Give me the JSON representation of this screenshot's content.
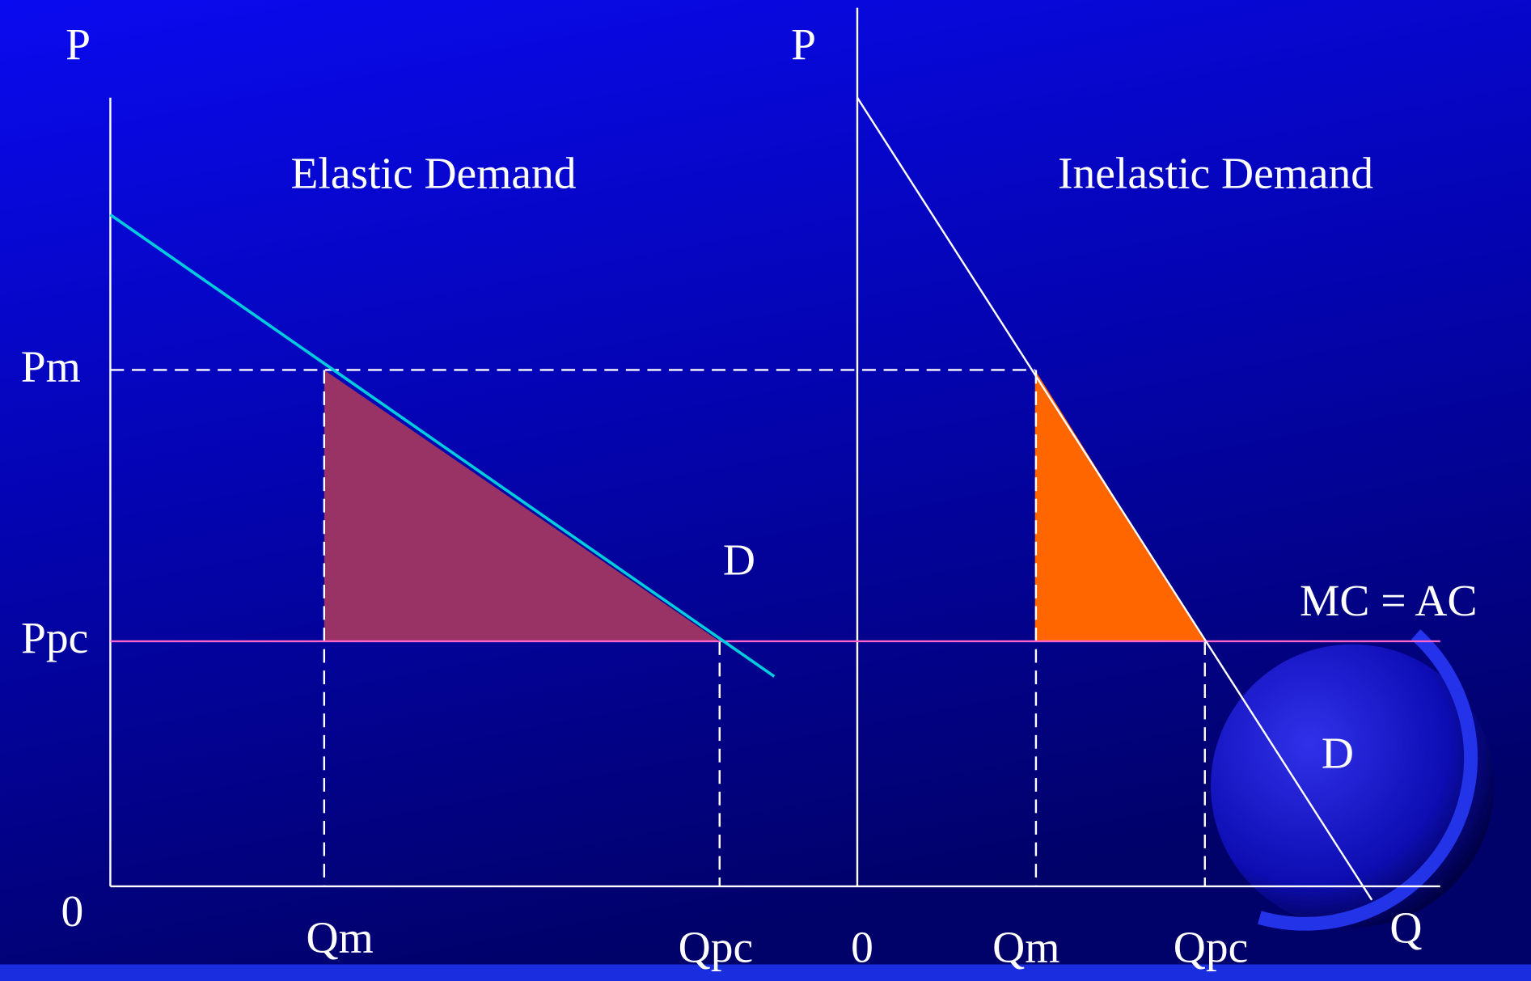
{
  "left_panel": {
    "axis_y_label": "P",
    "title": "Elastic Demand",
    "price_labels": [
      "Pm",
      "Ppc"
    ],
    "origin": "0",
    "quantity_labels": [
      "Qm",
      "Qpc"
    ],
    "curve_label": "D"
  },
  "right_panel": {
    "axis_y_label": "P",
    "title": "Inelastic Demand",
    "origin": "0",
    "quantity_labels": [
      "Qm",
      "Qpc"
    ],
    "curve_label": "D",
    "cost_label": "MC = AC",
    "axis_x_label": "Q"
  }
}
